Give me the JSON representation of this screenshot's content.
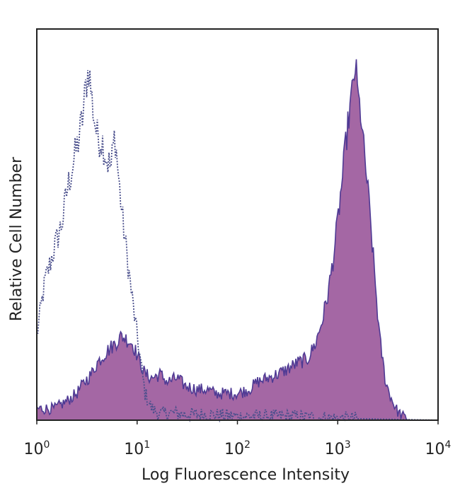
{
  "chart_data": {
    "type": "area",
    "xlabel": "Log Fluorescence Intensity",
    "ylabel": "Relative Cell Number",
    "xscale": "log",
    "xlim": [
      1,
      10000
    ],
    "ylim": [
      0,
      1
    ],
    "grid": false,
    "x_ticks": [
      {
        "base": "10",
        "exp": "0",
        "value": 1
      },
      {
        "base": "10",
        "exp": "1",
        "value": 10
      },
      {
        "base": "10",
        "exp": "2",
        "value": 100
      },
      {
        "base": "10",
        "exp": "3",
        "value": 1000
      },
      {
        "base": "10",
        "exp": "4",
        "value": 10000
      }
    ],
    "series": [
      {
        "style": "dotted-outline",
        "color": "#4a4f8c",
        "x": [
          1.0,
          1.2,
          1.5,
          1.8,
          2.0,
          2.3,
          2.6,
          2.9,
          3.1,
          3.3,
          3.6,
          4.0,
          4.5,
          5.0,
          5.5,
          6.0,
          6.6,
          7.2,
          8.0,
          9.0,
          10.0,
          11.0,
          12.0,
          14.0,
          17.0,
          20.0,
          30.0,
          50.0,
          100.0,
          300.0,
          1000.0,
          10000.0
        ],
        "values": [
          0.22,
          0.36,
          0.45,
          0.52,
          0.6,
          0.67,
          0.73,
          0.8,
          0.88,
          0.92,
          0.82,
          0.74,
          0.73,
          0.68,
          0.66,
          0.75,
          0.62,
          0.52,
          0.42,
          0.31,
          0.22,
          0.14,
          0.07,
          0.03,
          0.015,
          0.02,
          0.015,
          0.015,
          0.01,
          0.01,
          0.005,
          0.0
        ]
      },
      {
        "style": "filled",
        "color": "#9c5a9c",
        "edge_color": "#4f3a94",
        "x": [
          1.0,
          1.5,
          2.0,
          2.5,
          3.0,
          3.5,
          4.0,
          5.0,
          6.0,
          7.0,
          8.0,
          9.0,
          10.0,
          12.0,
          14.0,
          17.0,
          20.0,
          25.0,
          30.0,
          40.0,
          50.0,
          60.0,
          80.0,
          100.0,
          130.0,
          160.0,
          200.0,
          250.0,
          300.0,
          400.0,
          500.0,
          600.0,
          700.0,
          800.0,
          900.0,
          1000.0,
          1100.0,
          1200.0,
          1300.0,
          1400.0,
          1500.0,
          1600.0,
          1700.0,
          1800.0,
          2000.0,
          2300.0,
          2600.0,
          3000.0,
          3500.0,
          4000.0,
          4500.0,
          5000.0
        ],
        "values": [
          0.03,
          0.03,
          0.05,
          0.07,
          0.1,
          0.12,
          0.15,
          0.18,
          0.2,
          0.22,
          0.21,
          0.2,
          0.17,
          0.12,
          0.11,
          0.12,
          0.1,
          0.11,
          0.09,
          0.08,
          0.08,
          0.07,
          0.07,
          0.07,
          0.08,
          0.1,
          0.11,
          0.12,
          0.13,
          0.15,
          0.16,
          0.2,
          0.26,
          0.33,
          0.42,
          0.52,
          0.62,
          0.72,
          0.8,
          0.86,
          0.93,
          0.84,
          0.8,
          0.72,
          0.6,
          0.4,
          0.22,
          0.1,
          0.05,
          0.02,
          0.01,
          0.0
        ]
      }
    ]
  }
}
